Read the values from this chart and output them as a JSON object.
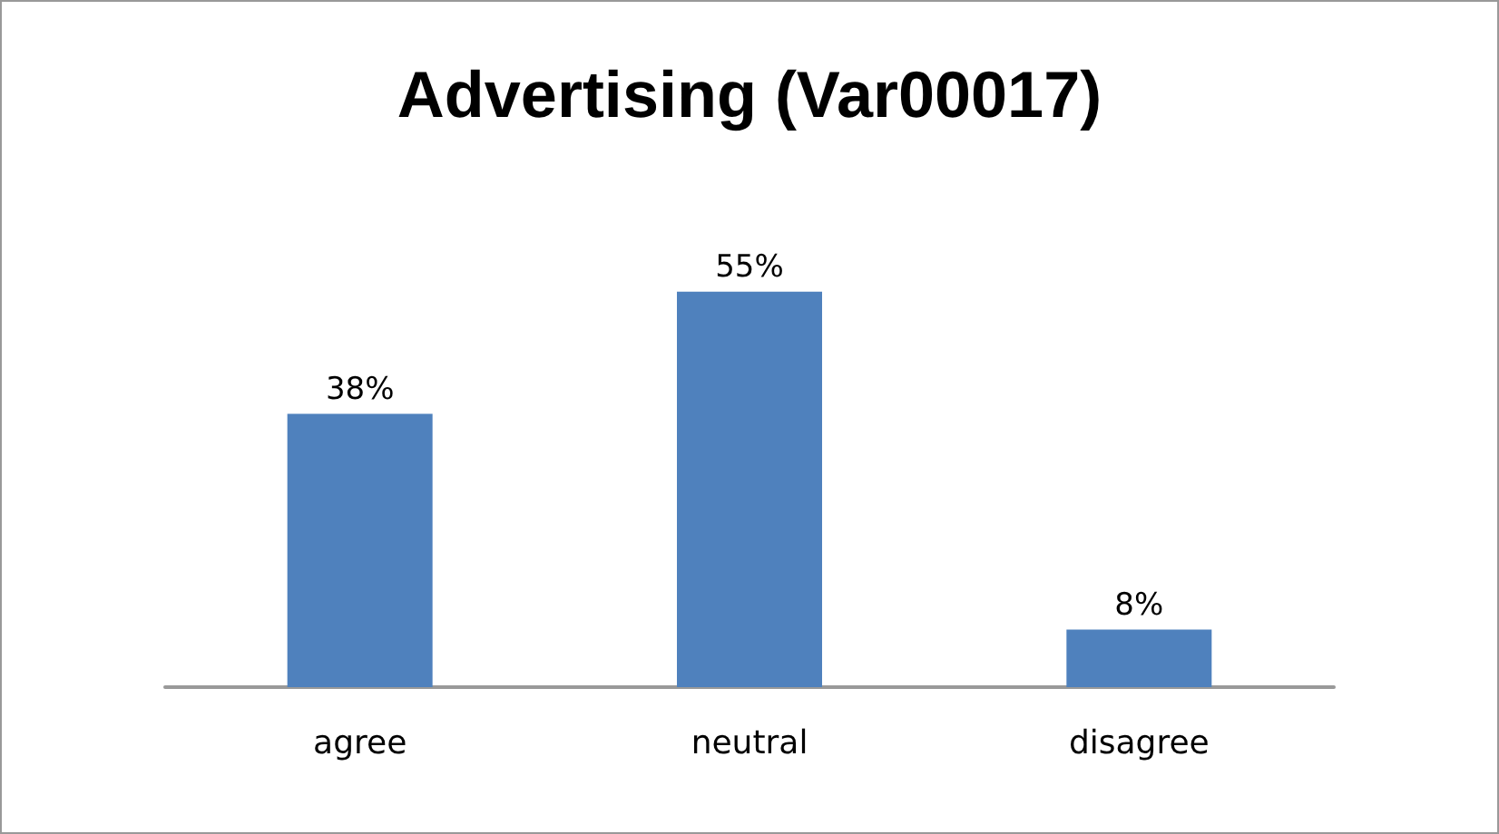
{
  "chart_data": {
    "type": "bar",
    "title": "Advertising (Var00017)",
    "categories": [
      "agree",
      "neutral",
      "disagree"
    ],
    "values": [
      38,
      55,
      8
    ],
    "value_labels": [
      "38%",
      "55%",
      "8%"
    ],
    "color": "#4f81bd"
  }
}
